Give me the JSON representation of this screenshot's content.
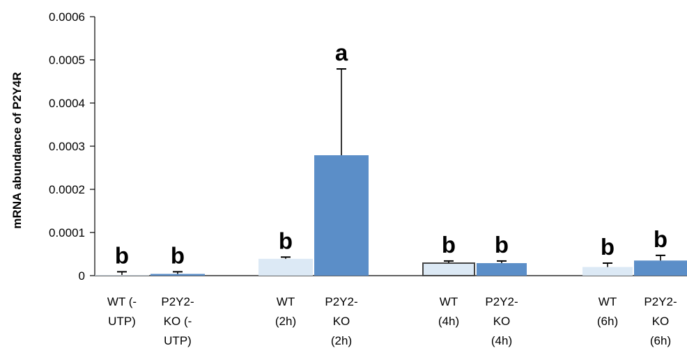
{
  "chart_data": {
    "type": "bar",
    "title": "",
    "xlabel": "",
    "ylabel": "mRNA abundance of  P2Y4R",
    "ylim": [
      0,
      0.0006
    ],
    "y_ticks": [
      "0",
      "0.0001",
      "0.0002",
      "0.0003",
      "0.0004",
      "0.0005",
      "0.0006"
    ],
    "y_tick_values": [
      0,
      0.0001,
      0.0002,
      0.0003,
      0.0004,
      0.0005,
      0.0006
    ],
    "grid": false,
    "legend": "none",
    "categories": [
      "WT (- UTP)",
      "P2Y2- KO (- UTP)",
      "WT (2h)",
      "P2Y2- KO (2h)",
      "WT (4h)",
      "P2Y2- KO (4h)",
      "WT (6h)",
      "P2Y2- KO (6h)"
    ],
    "category_label_lines": [
      [
        "WT (-",
        "UTP)"
      ],
      [
        "P2Y2-",
        "KO (-",
        "UTP)"
      ],
      [
        "WT",
        "(2h)"
      ],
      [
        "P2Y2-",
        "KO",
        "(2h)"
      ],
      [
        "WT",
        "(4h)"
      ],
      [
        "P2Y2-",
        "KO",
        "(4h)"
      ],
      [
        "WT",
        "(6h)"
      ],
      [
        "P2Y2-",
        "KO",
        "(6h)"
      ]
    ],
    "values": [
      5e-07,
      4e-06,
      3.9e-05,
      0.000279,
      2.9e-05,
      2.9e-05,
      2e-05,
      3.5e-05
    ],
    "error_upper": [
      9e-06,
      9e-06,
      4.3e-05,
      0.000479,
      3.4e-05,
      3.4e-05,
      2.9e-05,
      4.7e-05
    ],
    "annotations": [
      "b",
      "b",
      "b",
      "a",
      "b",
      "b",
      "b",
      "b"
    ],
    "colors": {
      "wt": "#dce9f5",
      "ko": "#5b8ec8",
      "wt_4h_border": "#444444",
      "axis": "#000000"
    },
    "bar_kinds": [
      "wt",
      "ko",
      "wt",
      "ko",
      "wt-outlined",
      "ko",
      "wt",
      "ko"
    ]
  }
}
